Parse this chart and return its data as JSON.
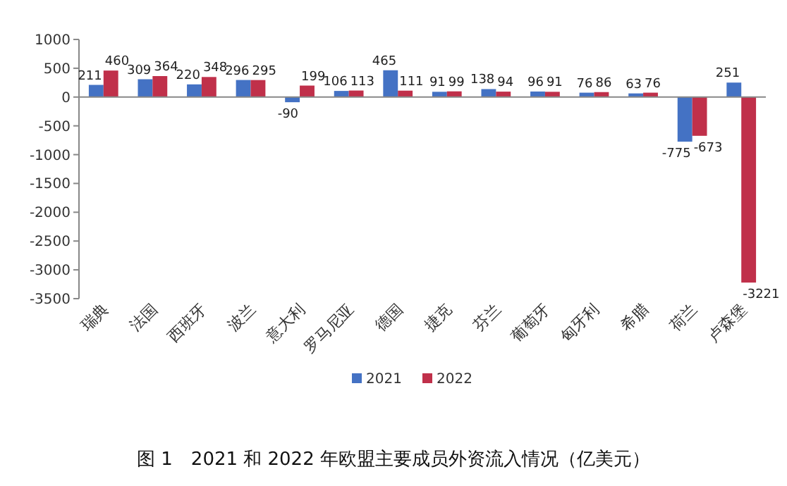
{
  "chart_data": {
    "type": "bar",
    "title": "图 1　2021 和 2022 年欧盟主要成员外资流入情况（亿美元）",
    "categories": [
      "瑞典",
      "法国",
      "西班牙",
      "波兰",
      "意大利",
      "罗马尼亚",
      "德国",
      "捷克",
      "芬兰",
      "葡萄牙",
      "匈牙利",
      "希腊",
      "荷兰",
      "卢森堡"
    ],
    "series": [
      {
        "name": "2021",
        "color": "#4472c4",
        "values": [
          211,
          309,
          220,
          296,
          -90,
          106,
          465,
          91,
          138,
          96,
          76,
          63,
          -775,
          251
        ]
      },
      {
        "name": "2022",
        "color": "#c0304a",
        "values": [
          460,
          364,
          348,
          295,
          199,
          113,
          111,
          99,
          94,
          91,
          86,
          76,
          -673,
          -3221
        ]
      }
    ],
    "ylim": [
      -3500,
      1000
    ],
    "yticks": [
      -3500,
      -3000,
      -2500,
      -2000,
      -1500,
      -1000,
      -500,
      0,
      500,
      1000
    ],
    "data_labels": true,
    "legend": "bottom"
  }
}
